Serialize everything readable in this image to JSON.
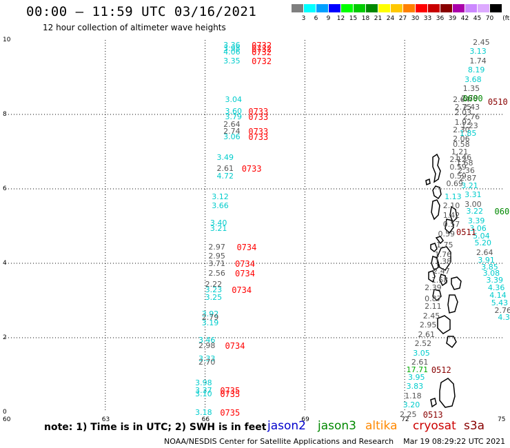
{
  "header": {
    "title": "00:00 – 11:59 UTC 03/16/2021",
    "subtitle": "12 hour collection of altimeter wave heights"
  },
  "legend": {
    "unit": "(ft)",
    "bins": [
      {
        "label": "3",
        "color": "#7f7f7f"
      },
      {
        "label": "6",
        "color": "#00ffff"
      },
      {
        "label": "9",
        "color": "#00a0ff"
      },
      {
        "label": "12",
        "color": "#0000ff"
      },
      {
        "label": "15",
        "color": "#00ff00"
      },
      {
        "label": "18",
        "color": "#00cc00"
      },
      {
        "label": "21",
        "color": "#008800"
      },
      {
        "label": "24",
        "color": "#ffff00"
      },
      {
        "label": "27",
        "color": "#ffc800"
      },
      {
        "label": "30",
        "color": "#ff8000"
      },
      {
        "label": "33",
        "color": "#ff0000"
      },
      {
        "label": "36",
        "color": "#c80000"
      },
      {
        "label": "39",
        "color": "#880000"
      },
      {
        "label": "42",
        "color": "#aa00aa"
      },
      {
        "label": "45",
        "color": "#cc88ff"
      },
      {
        "label": "70",
        "color": "#ddaaff"
      },
      {
        "label": "",
        "color": "#000000"
      }
    ]
  },
  "map": {
    "lat_labels": [
      "10",
      "8",
      "6",
      "4",
      "2",
      "0"
    ],
    "lon_labels": [
      "60",
      "63",
      "66",
      "69",
      "72",
      "75"
    ],
    "observations": [
      {
        "lon": 66.55,
        "lat": 9.87,
        "value": "3.36",
        "color": "#00cccc"
      },
      {
        "lon": 66.55,
        "lat": 9.77,
        "value": "3.98",
        "color": "#00cccc"
      },
      {
        "lon": 66.55,
        "lat": 9.68,
        "value": "4.06",
        "color": "#00cccc"
      },
      {
        "lon": 66.55,
        "lat": 9.45,
        "value": "3.35",
        "color": "#00cccc"
      },
      {
        "lon": 66.6,
        "lat": 8.4,
        "value": "3.04",
        "color": "#00cccc"
      },
      {
        "lon": 66.6,
        "lat": 8.1,
        "value": "3.60",
        "color": "#00cccc"
      },
      {
        "lon": 66.6,
        "lat": 7.95,
        "value": "3.79",
        "color": "#00cccc"
      },
      {
        "lon": 66.55,
        "lat": 7.75,
        "value": "2.64",
        "color": "#555555"
      },
      {
        "lon": 66.55,
        "lat": 7.55,
        "value": "2.74",
        "color": "#555555"
      },
      {
        "lon": 66.55,
        "lat": 7.4,
        "value": "3.06",
        "color": "#00cccc"
      },
      {
        "lon": 66.35,
        "lat": 6.85,
        "value": "3.49",
        "color": "#00cccc"
      },
      {
        "lon": 66.35,
        "lat": 6.55,
        "value": "2.61",
        "color": "#555555"
      },
      {
        "lon": 66.35,
        "lat": 6.35,
        "value": "4.72",
        "color": "#00cccc"
      },
      {
        "lon": 66.2,
        "lat": 5.8,
        "value": "3.12",
        "color": "#00cccc"
      },
      {
        "lon": 66.2,
        "lat": 5.55,
        "value": "3.66",
        "color": "#00cccc"
      },
      {
        "lon": 66.15,
        "lat": 5.1,
        "value": "3.40",
        "color": "#00cccc"
      },
      {
        "lon": 66.15,
        "lat": 4.95,
        "value": "3.21",
        "color": "#00cccc"
      },
      {
        "lon": 66.1,
        "lat": 4.45,
        "value": "2.97",
        "color": "#555555"
      },
      {
        "lon": 66.1,
        "lat": 4.2,
        "value": "2.95",
        "color": "#555555"
      },
      {
        "lon": 66.1,
        "lat": 4.0,
        "value": "3.71",
        "color": "#555555"
      },
      {
        "lon": 66.1,
        "lat": 3.75,
        "value": "2.56",
        "color": "#555555"
      },
      {
        "lon": 66.0,
        "lat": 3.45,
        "value": "2.22",
        "color": "#555555"
      },
      {
        "lon": 66.0,
        "lat": 3.3,
        "value": "3.23",
        "color": "#00cccc"
      },
      {
        "lon": 66.0,
        "lat": 3.1,
        "value": "3.25",
        "color": "#00cccc"
      },
      {
        "lon": 65.9,
        "lat": 2.65,
        "value": "3.92",
        "color": "#00cccc"
      },
      {
        "lon": 65.9,
        "lat": 2.55,
        "value": "2.79",
        "color": "#555555"
      },
      {
        "lon": 65.9,
        "lat": 2.4,
        "value": "3.19",
        "color": "#00cccc"
      },
      {
        "lon": 65.8,
        "lat": 1.95,
        "value": "3.46",
        "color": "#00cccc"
      },
      {
        "lon": 65.8,
        "lat": 1.8,
        "value": "2.98",
        "color": "#555555"
      },
      {
        "lon": 65.8,
        "lat": 1.45,
        "value": "3.33",
        "color": "#00cccc"
      },
      {
        "lon": 65.8,
        "lat": 1.35,
        "value": "2.70",
        "color": "#555555"
      },
      {
        "lon": 65.7,
        "lat": 0.8,
        "value": "3.98",
        "color": "#00cccc"
      },
      {
        "lon": 65.7,
        "lat": 0.6,
        "value": "3.37",
        "color": "#00cccc"
      },
      {
        "lon": 65.7,
        "lat": 0.5,
        "value": "3.10",
        "color": "#00cccc"
      },
      {
        "lon": 65.7,
        "lat": 0.0,
        "value": "3.18",
        "color": "#00cccc"
      },
      {
        "lon": 74.05,
        "lat": 9.95,
        "value": "2.45",
        "color": "#555555"
      },
      {
        "lon": 73.95,
        "lat": 9.7,
        "value": "3.13",
        "color": "#00cccc"
      },
      {
        "lon": 73.95,
        "lat": 9.45,
        "value": "1.74",
        "color": "#555555"
      },
      {
        "lon": 73.9,
        "lat": 9.2,
        "value": "8.19",
        "color": "#00cccc"
      },
      {
        "lon": 73.8,
        "lat": 8.95,
        "value": "3.68",
        "color": "#00cccc"
      },
      {
        "lon": 73.75,
        "lat": 8.7,
        "value": "1.35",
        "color": "#555555"
      },
      {
        "lon": 73.7,
        "lat": 8.45,
        "value": "2.79",
        "color": "#555555"
      },
      {
        "lon": 73.45,
        "lat": 8.4,
        "value": "2.64",
        "color": "#555555"
      },
      {
        "lon": 73.5,
        "lat": 8.2,
        "value": "2.75",
        "color": "#555555"
      },
      {
        "lon": 73.75,
        "lat": 8.2,
        "value": "2.43",
        "color": "#555555"
      },
      {
        "lon": 73.5,
        "lat": 8.05,
        "value": "2.03",
        "color": "#555555"
      },
      {
        "lon": 73.75,
        "lat": 7.95,
        "value": "2.76",
        "color": "#555555"
      },
      {
        "lon": 73.5,
        "lat": 7.8,
        "value": "1.92",
        "color": "#555555"
      },
      {
        "lon": 73.7,
        "lat": 7.7,
        "value": "1.23",
        "color": "#555555"
      },
      {
        "lon": 73.45,
        "lat": 7.6,
        "value": "2.30",
        "color": "#555555"
      },
      {
        "lon": 73.65,
        "lat": 7.5,
        "value": "1.85",
        "color": "#00cccc"
      },
      {
        "lon": 73.45,
        "lat": 7.35,
        "value": "2.06",
        "color": "#555555"
      },
      {
        "lon": 73.45,
        "lat": 7.2,
        "value": "0.58",
        "color": "#555555"
      },
      {
        "lon": 73.4,
        "lat": 7.0,
        "value": "1.21",
        "color": "#555555"
      },
      {
        "lon": 73.5,
        "lat": 6.85,
        "value": "1.46",
        "color": "#555555"
      },
      {
        "lon": 73.35,
        "lat": 6.8,
        "value": "2.12",
        "color": "#555555"
      },
      {
        "lon": 73.55,
        "lat": 6.7,
        "value": "1.68",
        "color": "#555555"
      },
      {
        "lon": 73.35,
        "lat": 6.6,
        "value": "0.59",
        "color": "#555555"
      },
      {
        "lon": 73.6,
        "lat": 6.5,
        "value": "2.36",
        "color": "#555555"
      },
      {
        "lon": 73.35,
        "lat": 6.35,
        "value": "0.59",
        "color": "#555555"
      },
      {
        "lon": 73.65,
        "lat": 6.3,
        "value": "2.87",
        "color": "#555555"
      },
      {
        "lon": 73.25,
        "lat": 6.15,
        "value": "0.69",
        "color": "#555555"
      },
      {
        "lon": 73.7,
        "lat": 6.1,
        "value": "3.21",
        "color": "#00cccc"
      },
      {
        "lon": 73.8,
        "lat": 5.85,
        "value": "3.31",
        "color": "#00cccc"
      },
      {
        "lon": 73.2,
        "lat": 5.8,
        "value": "1.13",
        "color": "#00cccc"
      },
      {
        "lon": 73.8,
        "lat": 5.6,
        "value": "3.00",
        "color": "#555555"
      },
      {
        "lon": 73.15,
        "lat": 5.55,
        "value": "2.10",
        "color": "#555555"
      },
      {
        "lon": 73.85,
        "lat": 5.4,
        "value": "3.22",
        "color": "#00cccc"
      },
      {
        "lon": 73.15,
        "lat": 5.3,
        "value": "1.42",
        "color": "#555555"
      },
      {
        "lon": 73.9,
        "lat": 5.15,
        "value": "3.39",
        "color": "#00cccc"
      },
      {
        "lon": 73.15,
        "lat": 5.05,
        "value": "0.57",
        "color": "#555555"
      },
      {
        "lon": 73.95,
        "lat": 4.95,
        "value": "3.06",
        "color": "#00cccc"
      },
      {
        "lon": 73.0,
        "lat": 4.8,
        "value": "0.59",
        "color": "#555555"
      },
      {
        "lon": 74.05,
        "lat": 4.75,
        "value": "5.04",
        "color": "#00cccc"
      },
      {
        "lon": 72.95,
        "lat": 4.5,
        "value": "1.75",
        "color": "#555555"
      },
      {
        "lon": 74.1,
        "lat": 4.55,
        "value": "5.20",
        "color": "#00cccc"
      },
      {
        "lon": 74.15,
        "lat": 4.3,
        "value": "2.64",
        "color": "#555555"
      },
      {
        "lon": 72.9,
        "lat": 4.25,
        "value": "1.76",
        "color": "#555555"
      },
      {
        "lon": 74.2,
        "lat": 4.1,
        "value": "3.91",
        "color": "#00cccc"
      },
      {
        "lon": 72.9,
        "lat": 4.05,
        "value": "1.38",
        "color": "#555555"
      },
      {
        "lon": 74.3,
        "lat": 3.9,
        "value": "3.85",
        "color": "#00cccc"
      },
      {
        "lon": 72.85,
        "lat": 3.8,
        "value": "2.47",
        "color": "#555555"
      },
      {
        "lon": 74.35,
        "lat": 3.75,
        "value": "3.08",
        "color": "#00cccc"
      },
      {
        "lon": 72.8,
        "lat": 3.55,
        "value": "1.58",
        "color": "#555555"
      },
      {
        "lon": 74.45,
        "lat": 3.55,
        "value": "3.39",
        "color": "#00cccc"
      },
      {
        "lon": 74.5,
        "lat": 3.35,
        "value": "4.36",
        "color": "#00cccc"
      },
      {
        "lon": 72.6,
        "lat": 3.35,
        "value": "2.39",
        "color": "#555555"
      },
      {
        "lon": 74.55,
        "lat": 3.15,
        "value": "4.14",
        "color": "#00cccc"
      },
      {
        "lon": 72.6,
        "lat": 3.05,
        "value": "0.87",
        "color": "#555555"
      },
      {
        "lon": 74.6,
        "lat": 2.95,
        "value": "5.43",
        "color": "#00cccc"
      },
      {
        "lon": 72.6,
        "lat": 2.85,
        "value": "2.11",
        "color": "#555555"
      },
      {
        "lon": 74.7,
        "lat": 2.75,
        "value": "2.76",
        "color": "#555555"
      },
      {
        "lon": 72.55,
        "lat": 2.6,
        "value": "2.45",
        "color": "#555555"
      },
      {
        "lon": 74.8,
        "lat": 2.55,
        "value": "4.30",
        "color": "#00cccc"
      },
      {
        "lon": 72.45,
        "lat": 2.35,
        "value": "2.95",
        "color": "#555555"
      },
      {
        "lon": 72.4,
        "lat": 2.1,
        "value": "2.61",
        "color": "#555555"
      },
      {
        "lon": 72.3,
        "lat": 1.85,
        "value": "2.52",
        "color": "#555555"
      },
      {
        "lon": 72.25,
        "lat": 1.6,
        "value": "3.05",
        "color": "#00cccc"
      },
      {
        "lon": 72.2,
        "lat": 1.35,
        "value": "2.61",
        "color": "#555555"
      },
      {
        "lon": 72.05,
        "lat": 1.15,
        "value": "17.71",
        "color": "#00aa00"
      },
      {
        "lon": 72.1,
        "lat": 0.95,
        "value": "3.95",
        "color": "#00cccc"
      },
      {
        "lon": 72.05,
        "lat": 0.7,
        "value": "3.83",
        "color": "#00cccc"
      },
      {
        "lon": 72.0,
        "lat": 0.45,
        "value": "1.18",
        "color": "#555555"
      },
      {
        "lon": 71.95,
        "lat": 0.2,
        "value": "3.20",
        "color": "#00cccc"
      },
      {
        "lon": 71.85,
        "lat": -0.05,
        "value": "2.25",
        "color": "#555555"
      }
    ],
    "pass_times": [
      {
        "lon": 67.4,
        "lat": 9.87,
        "value": "0732",
        "color": "#ff0000"
      },
      {
        "lon": 67.4,
        "lat": 9.77,
        "value": "0732",
        "color": "#ff0000"
      },
      {
        "lon": 67.4,
        "lat": 9.68,
        "value": "0732",
        "color": "#ff0000"
      },
      {
        "lon": 67.4,
        "lat": 9.45,
        "value": "0732",
        "color": "#ff0000"
      },
      {
        "lon": 67.3,
        "lat": 8.1,
        "value": "0733",
        "color": "#ff0000"
      },
      {
        "lon": 67.3,
        "lat": 7.95,
        "value": "0733",
        "color": "#ff0000"
      },
      {
        "lon": 67.3,
        "lat": 7.55,
        "value": "0733",
        "color": "#ff0000"
      },
      {
        "lon": 67.3,
        "lat": 7.4,
        "value": "0733",
        "color": "#ff0000"
      },
      {
        "lon": 67.1,
        "lat": 6.55,
        "value": "0733",
        "color": "#ff0000"
      },
      {
        "lon": 66.95,
        "lat": 4.45,
        "value": "0734",
        "color": "#ff0000"
      },
      {
        "lon": 66.9,
        "lat": 4.0,
        "value": "0734",
        "color": "#ff0000"
      },
      {
        "lon": 66.9,
        "lat": 3.75,
        "value": "0734",
        "color": "#ff0000"
      },
      {
        "lon": 66.8,
        "lat": 3.3,
        "value": "0734",
        "color": "#ff0000"
      },
      {
        "lon": 66.6,
        "lat": 1.8,
        "value": "0734",
        "color": "#ff0000"
      },
      {
        "lon": 66.45,
        "lat": 0.6,
        "value": "0735",
        "color": "#ff0000"
      },
      {
        "lon": 66.45,
        "lat": 0.5,
        "value": "0735",
        "color": "#ff0000"
      },
      {
        "lon": 66.45,
        "lat": 0.0,
        "value": "0735",
        "color": "#ff0000"
      },
      {
        "lon": 73.75,
        "lat": 8.45,
        "value": "0600",
        "color": "#008800"
      },
      {
        "lon": 74.5,
        "lat": 8.35,
        "value": "0510",
        "color": "#880000"
      },
      {
        "lon": 74.7,
        "lat": 5.4,
        "value": "0600",
        "color": "#008800"
      },
      {
        "lon": 73.55,
        "lat": 4.85,
        "value": "0511",
        "color": "#880000"
      },
      {
        "lon": 72.8,
        "lat": 1.15,
        "value": "0512",
        "color": "#880000"
      },
      {
        "lon": 72.55,
        "lat": -0.05,
        "value": "0513",
        "color": "#880000"
      }
    ]
  },
  "footer": {
    "note": "note: 1) Time is in UTC; 2) SWH is in feet",
    "satellites": [
      {
        "name": "jason2",
        "color": "#0000cc"
      },
      {
        "name": "jason3",
        "color": "#008800"
      },
      {
        "name": "altika",
        "color": "#ff8800"
      },
      {
        "name": "cryosat",
        "color": "#cc0000"
      },
      {
        "name": "s3a",
        "color": "#880000"
      }
    ],
    "credit": "NOAA/NESDIS Center for Satellite Applications and Research",
    "generated": "Mar 19 08:29:22 UTC 2021"
  }
}
